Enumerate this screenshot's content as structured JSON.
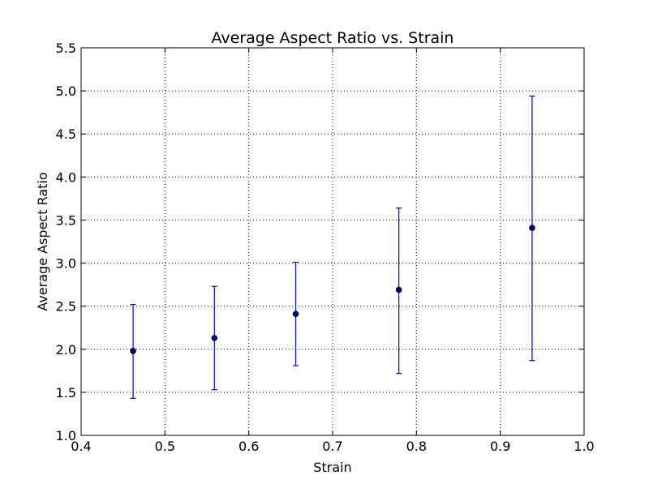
{
  "chart_data": {
    "type": "scatter",
    "title": "Average Aspect Ratio vs. Strain",
    "xlabel": "Strain",
    "ylabel": "Average Aspect Ratio",
    "xlim": [
      0.4,
      1.0
    ],
    "ylim": [
      1.0,
      5.5
    ],
    "xticks": [
      "0.4",
      "0.5",
      "0.6",
      "0.7",
      "0.8",
      "0.9",
      "1.0"
    ],
    "yticks": [
      "1.0",
      "1.5",
      "2.0",
      "2.5",
      "3.0",
      "3.5",
      "4.0",
      "4.5",
      "5.0",
      "5.5"
    ],
    "grid": true,
    "marker_color": "#00007f",
    "errorbar_color": "#0000ff",
    "points": [
      {
        "x": 0.462,
        "y": 1.98,
        "ylow": 1.43,
        "yhigh": 2.52
      },
      {
        "x": 0.559,
        "y": 2.13,
        "ylow": 1.53,
        "yhigh": 2.73
      },
      {
        "x": 0.656,
        "y": 2.41,
        "ylow": 1.81,
        "yhigh": 3.01
      },
      {
        "x": 0.779,
        "y": 2.69,
        "ylow": 1.72,
        "yhigh": 3.64
      },
      {
        "x": 0.938,
        "y": 3.41,
        "ylow": 1.87,
        "yhigh": 4.94
      }
    ]
  }
}
